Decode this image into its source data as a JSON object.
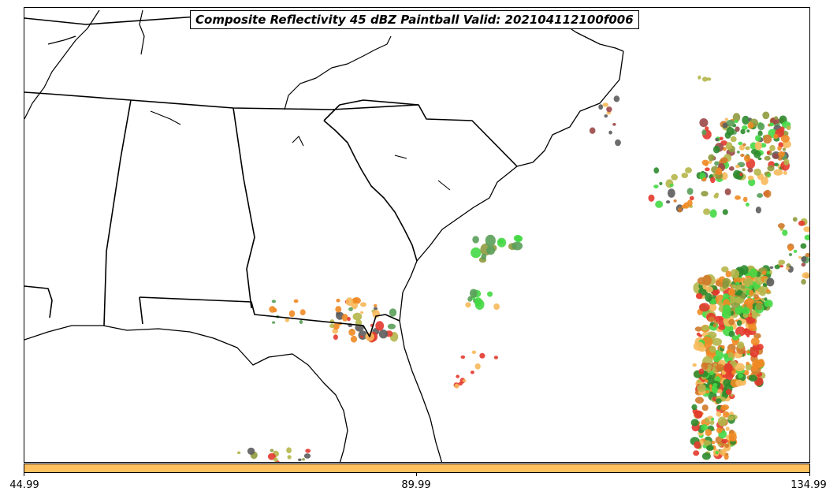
{
  "title": "Composite Reflectivity 45 dBZ Paintball Valid: 202104112100f006",
  "colorbar": {
    "color": "#ffc060",
    "ticks": [
      "44.99",
      "89.99",
      "134.99"
    ]
  },
  "paintball_colors": [
    "#e3382c",
    "#f08a24",
    "#f7b95a",
    "#b5b64a",
    "#8f9a3e",
    "#5a9e5a",
    "#45d845",
    "#5c5c5c",
    "#9b4848",
    "#d07a2a",
    "#2e8b2e"
  ]
}
